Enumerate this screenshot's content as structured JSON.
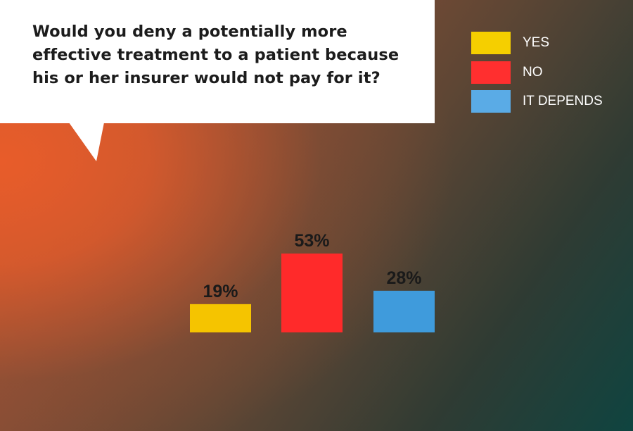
{
  "question": "Would you deny a potentially more effective treatment to a patient because his or her insurer would not pay for it?",
  "chart_data": {
    "type": "bar",
    "categories": [
      "YES",
      "NO",
      "IT DEPENDS"
    ],
    "values": [
      19,
      53,
      28
    ],
    "value_labels": [
      "19%",
      "53%",
      "28%"
    ],
    "colors": [
      "#f5c400",
      "#ff2a2a",
      "#3f9bdc"
    ],
    "legend_colors": [
      "#f5cf00",
      "#ff2f2f",
      "#5aabe6"
    ],
    "unit": "%",
    "legend_position": "top-right",
    "grid": false
  }
}
